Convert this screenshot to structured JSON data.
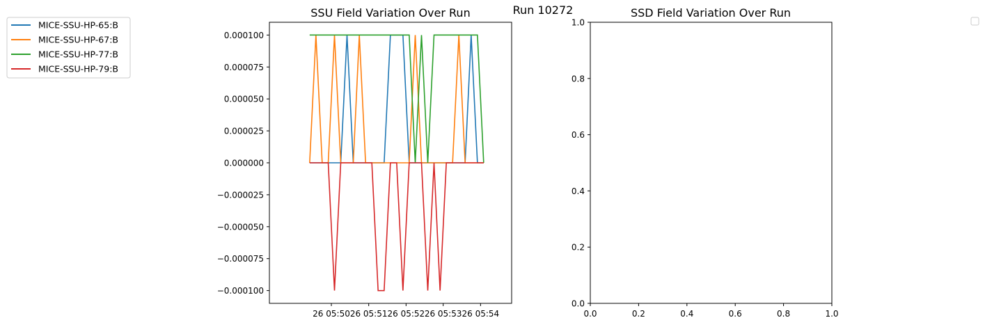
{
  "suptitle": "Run 10272",
  "chart_data": [
    {
      "type": "line",
      "title": "SSU Field Variation Over Run",
      "xlabel": "",
      "ylabel": "",
      "x_ticks": [
        "26 05:50",
        "26 05:51",
        "26 05:52",
        "26 05:53",
        "26 05:54"
      ],
      "x_tick_minutes": [
        5.8333,
        5.85,
        5.8667,
        5.8833,
        5.9
      ],
      "xlim_minutes": [
        5.8056,
        5.9139
      ],
      "x": [
        "05:49:25",
        "05:49:35",
        "05:49:45",
        "05:49:55",
        "05:50:05",
        "05:50:15",
        "05:50:25",
        "05:50:35",
        "05:50:45",
        "05:50:55",
        "05:51:05",
        "05:51:15",
        "05:51:25",
        "05:51:35",
        "05:51:45",
        "05:51:55",
        "05:52:05",
        "05:52:15",
        "05:52:25",
        "05:52:35",
        "05:52:45",
        "05:52:55",
        "05:53:05",
        "05:53:15",
        "05:53:25",
        "05:53:35",
        "05:53:45",
        "05:53:55",
        "05:54:05"
      ],
      "x_minutes": [
        5.8236,
        5.8264,
        5.8292,
        5.8319,
        5.8347,
        5.8375,
        5.8403,
        5.8431,
        5.8458,
        5.8486,
        5.8514,
        5.8542,
        5.8569,
        5.8597,
        5.8625,
        5.8653,
        5.8681,
        5.8708,
        5.8736,
        5.8764,
        5.8792,
        5.8819,
        5.8847,
        5.8875,
        5.8903,
        5.8931,
        5.8958,
        5.8986,
        5.9014
      ],
      "y_ticks": [
        "0.000100",
        "0.000075",
        "0.000050",
        "0.000025",
        "0.000000",
        "−0.000025",
        "−0.000050",
        "−0.000075",
        "−0.000100"
      ],
      "y_tick_values": [
        0.0001,
        7.5e-05,
        5e-05,
        2.5e-05,
        0,
        -2.5e-05,
        -5e-05,
        -7.5e-05,
        -0.0001
      ],
      "ylim": [
        -0.00011,
        0.00011
      ],
      "grid": false,
      "legend_position": "outside-top-left",
      "series": [
        {
          "name": "MICE-SSU-HP-65:B",
          "color": "#1f77b4",
          "values": [
            0,
            0,
            0,
            0,
            0,
            0,
            0.0001,
            0,
            0,
            0,
            0,
            0,
            0,
            0.0001,
            0.0001,
            0.0001,
            0,
            0,
            0,
            0,
            0,
            0,
            0,
            0,
            0,
            0,
            0.0001,
            0,
            0
          ]
        },
        {
          "name": "MICE-SSU-HP-67:B",
          "color": "#ff7f0e",
          "values": [
            0,
            0.0001,
            0,
            0,
            0.0001,
            0,
            0,
            0,
            0.0001,
            0,
            0,
            0,
            0,
            0,
            0,
            0,
            0,
            0.0001,
            0,
            0,
            0,
            0,
            0,
            0,
            0.0001,
            0,
            0,
            0,
            0
          ]
        },
        {
          "name": "MICE-SSU-HP-77:B",
          "color": "#2ca02c",
          "values": [
            0.0001,
            0.0001,
            0.0001,
            0.0001,
            0.0001,
            0.0001,
            0.0001,
            0.0001,
            0.0001,
            0.0001,
            0.0001,
            0.0001,
            0.0001,
            0.0001,
            0.0001,
            0.0001,
            0.0001,
            0,
            0.0001,
            0,
            0.0001,
            0.0001,
            0.0001,
            0.0001,
            0.0001,
            0.0001,
            0.0001,
            0.0001,
            0
          ]
        },
        {
          "name": "MICE-SSU-HP-79:B",
          "color": "#d62728",
          "values": [
            0,
            0,
            0,
            0,
            -0.0001,
            0,
            0,
            0,
            0,
            0,
            0,
            -0.0001,
            -0.0001,
            0,
            0,
            -0.0001,
            0,
            0,
            0,
            -0.0001,
            0,
            -0.0001,
            0,
            0,
            0,
            0,
            0,
            0,
            0
          ]
        }
      ]
    },
    {
      "type": "line",
      "title": "SSD Field Variation Over Run",
      "xlabel": "",
      "ylabel": "",
      "x_ticks": [
        "0.0",
        "0.2",
        "0.4",
        "0.6",
        "0.8",
        "1.0"
      ],
      "x_tick_values": [
        0,
        0.2,
        0.4,
        0.6,
        0.8,
        1.0
      ],
      "y_ticks": [
        "0.0",
        "0.2",
        "0.4",
        "0.6",
        "0.8",
        "1.0"
      ],
      "y_tick_values": [
        0,
        0.2,
        0.4,
        0.6,
        0.8,
        1.0
      ],
      "xlim": [
        0,
        1
      ],
      "ylim": [
        0,
        1
      ],
      "grid": false,
      "legend_position": "outside-top-right",
      "series": []
    }
  ]
}
